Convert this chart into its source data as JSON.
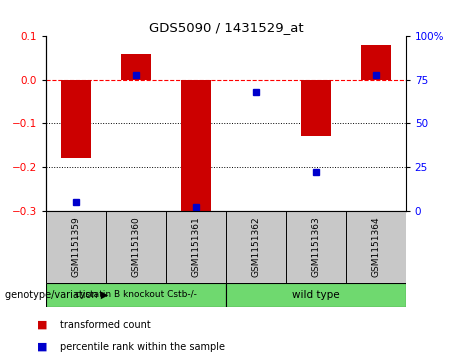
{
  "title": "GDS5090 / 1431529_at",
  "samples": [
    "GSM1151359",
    "GSM1151360",
    "GSM1151361",
    "GSM1151362",
    "GSM1151363",
    "GSM1151364"
  ],
  "red_values": [
    -0.18,
    0.06,
    -0.3,
    0.0,
    -0.13,
    0.08
  ],
  "blue_values_pct": [
    5,
    78,
    2,
    68,
    22,
    78
  ],
  "ylim_left": [
    -0.3,
    0.1
  ],
  "ylim_right": [
    0,
    100
  ],
  "yticks_left": [
    -0.3,
    -0.2,
    -0.1,
    0.0,
    0.1
  ],
  "yticks_right": [
    0,
    25,
    50,
    75,
    100
  ],
  "ytick_labels_right": [
    "0",
    "25",
    "50",
    "75",
    "100%"
  ],
  "dotted_lines": [
    -0.1,
    -0.2
  ],
  "group1_label": "cystatin B knockout Cstb-/-",
  "group2_label": "wild type",
  "group_color": "#6FD96F",
  "bar_color": "#CC0000",
  "square_color": "#0000CC",
  "bar_width": 0.5,
  "legend_red": "transformed count",
  "legend_blue": "percentile rank within the sample",
  "bg_color": "#ffffff",
  "sample_bg": "#c8c8c8"
}
